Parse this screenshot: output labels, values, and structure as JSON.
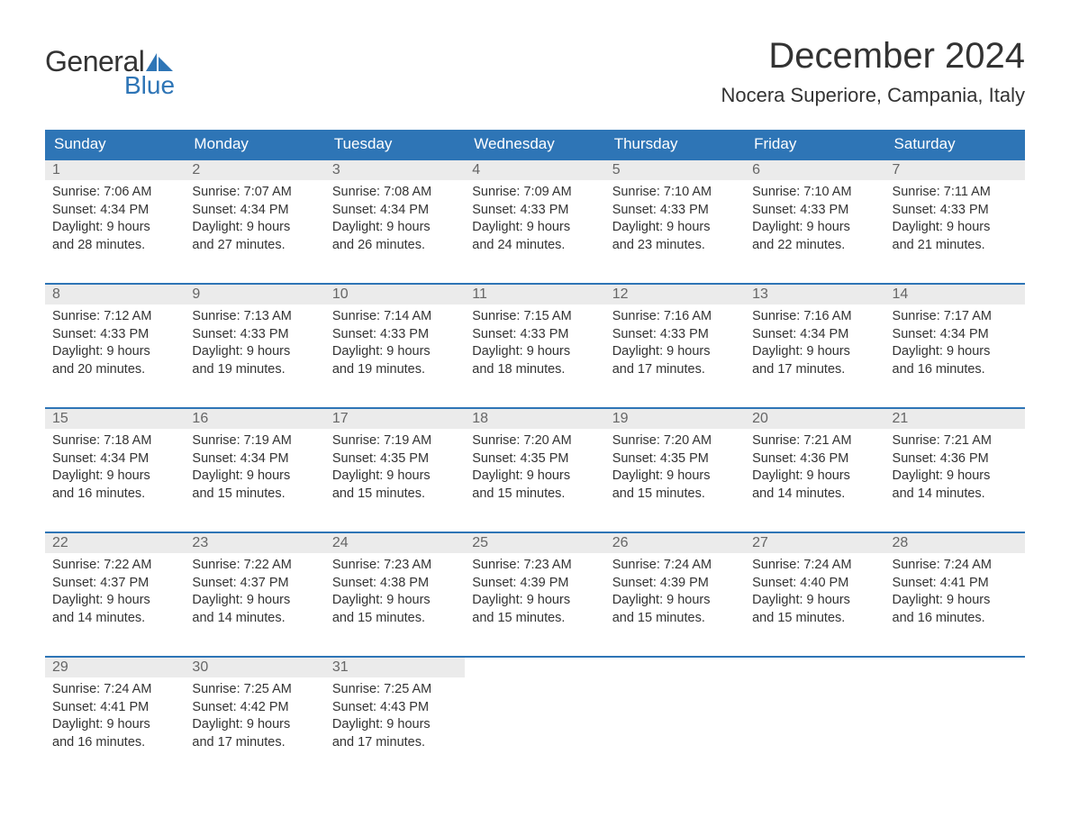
{
  "logo": {
    "text_general": "General",
    "text_blue": "Blue",
    "shape_color": "#2e75b6"
  },
  "title": "December 2024",
  "location": "Nocera Superiore, Campania, Italy",
  "colors": {
    "header_bg": "#2e75b6",
    "header_text": "#ffffff",
    "daynum_bg": "#ebebeb",
    "daynum_text": "#666666",
    "text": "#333333",
    "border": "#2e75b6",
    "page_bg": "#ffffff"
  },
  "day_headers": [
    "Sunday",
    "Monday",
    "Tuesday",
    "Wednesday",
    "Thursday",
    "Friday",
    "Saturday"
  ],
  "weeks": [
    [
      {
        "n": "1",
        "sr": "Sunrise: 7:06 AM",
        "ss": "Sunset: 4:34 PM",
        "d1": "Daylight: 9 hours",
        "d2": "and 28 minutes."
      },
      {
        "n": "2",
        "sr": "Sunrise: 7:07 AM",
        "ss": "Sunset: 4:34 PM",
        "d1": "Daylight: 9 hours",
        "d2": "and 27 minutes."
      },
      {
        "n": "3",
        "sr": "Sunrise: 7:08 AM",
        "ss": "Sunset: 4:34 PM",
        "d1": "Daylight: 9 hours",
        "d2": "and 26 minutes."
      },
      {
        "n": "4",
        "sr": "Sunrise: 7:09 AM",
        "ss": "Sunset: 4:33 PM",
        "d1": "Daylight: 9 hours",
        "d2": "and 24 minutes."
      },
      {
        "n": "5",
        "sr": "Sunrise: 7:10 AM",
        "ss": "Sunset: 4:33 PM",
        "d1": "Daylight: 9 hours",
        "d2": "and 23 minutes."
      },
      {
        "n": "6",
        "sr": "Sunrise: 7:10 AM",
        "ss": "Sunset: 4:33 PM",
        "d1": "Daylight: 9 hours",
        "d2": "and 22 minutes."
      },
      {
        "n": "7",
        "sr": "Sunrise: 7:11 AM",
        "ss": "Sunset: 4:33 PM",
        "d1": "Daylight: 9 hours",
        "d2": "and 21 minutes."
      }
    ],
    [
      {
        "n": "8",
        "sr": "Sunrise: 7:12 AM",
        "ss": "Sunset: 4:33 PM",
        "d1": "Daylight: 9 hours",
        "d2": "and 20 minutes."
      },
      {
        "n": "9",
        "sr": "Sunrise: 7:13 AM",
        "ss": "Sunset: 4:33 PM",
        "d1": "Daylight: 9 hours",
        "d2": "and 19 minutes."
      },
      {
        "n": "10",
        "sr": "Sunrise: 7:14 AM",
        "ss": "Sunset: 4:33 PM",
        "d1": "Daylight: 9 hours",
        "d2": "and 19 minutes."
      },
      {
        "n": "11",
        "sr": "Sunrise: 7:15 AM",
        "ss": "Sunset: 4:33 PM",
        "d1": "Daylight: 9 hours",
        "d2": "and 18 minutes."
      },
      {
        "n": "12",
        "sr": "Sunrise: 7:16 AM",
        "ss": "Sunset: 4:33 PM",
        "d1": "Daylight: 9 hours",
        "d2": "and 17 minutes."
      },
      {
        "n": "13",
        "sr": "Sunrise: 7:16 AM",
        "ss": "Sunset: 4:34 PM",
        "d1": "Daylight: 9 hours",
        "d2": "and 17 minutes."
      },
      {
        "n": "14",
        "sr": "Sunrise: 7:17 AM",
        "ss": "Sunset: 4:34 PM",
        "d1": "Daylight: 9 hours",
        "d2": "and 16 minutes."
      }
    ],
    [
      {
        "n": "15",
        "sr": "Sunrise: 7:18 AM",
        "ss": "Sunset: 4:34 PM",
        "d1": "Daylight: 9 hours",
        "d2": "and 16 minutes."
      },
      {
        "n": "16",
        "sr": "Sunrise: 7:19 AM",
        "ss": "Sunset: 4:34 PM",
        "d1": "Daylight: 9 hours",
        "d2": "and 15 minutes."
      },
      {
        "n": "17",
        "sr": "Sunrise: 7:19 AM",
        "ss": "Sunset: 4:35 PM",
        "d1": "Daylight: 9 hours",
        "d2": "and 15 minutes."
      },
      {
        "n": "18",
        "sr": "Sunrise: 7:20 AM",
        "ss": "Sunset: 4:35 PM",
        "d1": "Daylight: 9 hours",
        "d2": "and 15 minutes."
      },
      {
        "n": "19",
        "sr": "Sunrise: 7:20 AM",
        "ss": "Sunset: 4:35 PM",
        "d1": "Daylight: 9 hours",
        "d2": "and 15 minutes."
      },
      {
        "n": "20",
        "sr": "Sunrise: 7:21 AM",
        "ss": "Sunset: 4:36 PM",
        "d1": "Daylight: 9 hours",
        "d2": "and 14 minutes."
      },
      {
        "n": "21",
        "sr": "Sunrise: 7:21 AM",
        "ss": "Sunset: 4:36 PM",
        "d1": "Daylight: 9 hours",
        "d2": "and 14 minutes."
      }
    ],
    [
      {
        "n": "22",
        "sr": "Sunrise: 7:22 AM",
        "ss": "Sunset: 4:37 PM",
        "d1": "Daylight: 9 hours",
        "d2": "and 14 minutes."
      },
      {
        "n": "23",
        "sr": "Sunrise: 7:22 AM",
        "ss": "Sunset: 4:37 PM",
        "d1": "Daylight: 9 hours",
        "d2": "and 14 minutes."
      },
      {
        "n": "24",
        "sr": "Sunrise: 7:23 AM",
        "ss": "Sunset: 4:38 PM",
        "d1": "Daylight: 9 hours",
        "d2": "and 15 minutes."
      },
      {
        "n": "25",
        "sr": "Sunrise: 7:23 AM",
        "ss": "Sunset: 4:39 PM",
        "d1": "Daylight: 9 hours",
        "d2": "and 15 minutes."
      },
      {
        "n": "26",
        "sr": "Sunrise: 7:24 AM",
        "ss": "Sunset: 4:39 PM",
        "d1": "Daylight: 9 hours",
        "d2": "and 15 minutes."
      },
      {
        "n": "27",
        "sr": "Sunrise: 7:24 AM",
        "ss": "Sunset: 4:40 PM",
        "d1": "Daylight: 9 hours",
        "d2": "and 15 minutes."
      },
      {
        "n": "28",
        "sr": "Sunrise: 7:24 AM",
        "ss": "Sunset: 4:41 PM",
        "d1": "Daylight: 9 hours",
        "d2": "and 16 minutes."
      }
    ],
    [
      {
        "n": "29",
        "sr": "Sunrise: 7:24 AM",
        "ss": "Sunset: 4:41 PM",
        "d1": "Daylight: 9 hours",
        "d2": "and 16 minutes."
      },
      {
        "n": "30",
        "sr": "Sunrise: 7:25 AM",
        "ss": "Sunset: 4:42 PM",
        "d1": "Daylight: 9 hours",
        "d2": "and 17 minutes."
      },
      {
        "n": "31",
        "sr": "Sunrise: 7:25 AM",
        "ss": "Sunset: 4:43 PM",
        "d1": "Daylight: 9 hours",
        "d2": "and 17 minutes."
      },
      {
        "empty": true
      },
      {
        "empty": true
      },
      {
        "empty": true
      },
      {
        "empty": true
      }
    ]
  ]
}
